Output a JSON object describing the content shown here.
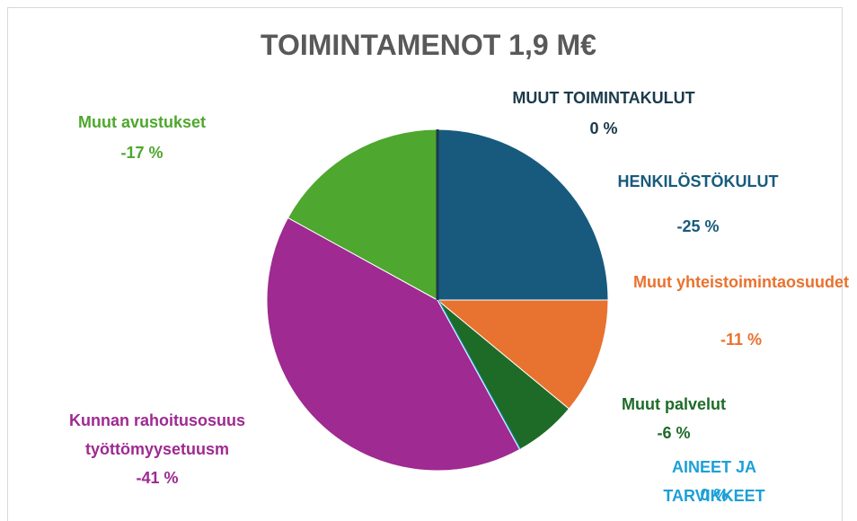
{
  "chart_data": {
    "type": "pie",
    "title": "TOIMINTAMENOT 1,9 M€",
    "categories": [
      "HENKILÖSTÖKULUT",
      "Muut yhteistoimintaosuudet",
      "Muut palvelut",
      "AINEET JA TARVIKKEET",
      "Kunnan rahoitusosuus työttömyysetuusm",
      "Muut avustukset",
      "MUUT TOIMINTAKULUT"
    ],
    "values": [
      -25,
      -11,
      -6,
      0,
      -41,
      -17,
      0
    ],
    "value_labels": [
      "-25 %",
      "-11 %",
      "-6 %",
      "0 %",
      "-41 %",
      "-17 %",
      "0 %"
    ],
    "colors": [
      "#185a7d",
      "#e8722f",
      "#1e6b28",
      "#1ca0d8",
      "#9e2a92",
      "#4ea72e",
      "#1b3a4b"
    ]
  }
}
